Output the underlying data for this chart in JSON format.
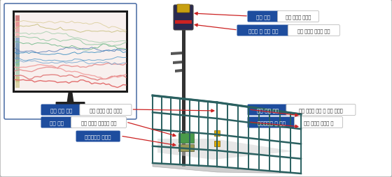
{
  "bg_color": "#eeeeee",
  "outer_border_color": "#aaaaaa",
  "label_bg_blue": "#1e4d9e",
  "label_gray_bg": "#f0f0f0",
  "label_gray_border": "#cccccc",
  "arrow_color": "#cc2222",
  "fence_color": "#2a6060",
  "pole_color": "#222222",
  "sensor_yellow": "#c8a010",
  "sensor_dark": "#333355",
  "monitor_frame": "#1a1a1a",
  "monitor_screen": "#f8f0ee",
  "monitor_border": "#5575aa",
  "labels_right_top": [
    [
      "풍속 센서",
      "지상 기지국 최상단"
    ],
    [
      "기울기 및 도난 센서",
      "지상 기지국 트러스 하단"
    ]
  ],
  "labels_left_bottom": [
    [
      "화재 감지 센서",
      "지상 기지국 펜스 모서리"
    ],
    [
      "전력 센서",
      "지상 기지국 분진함에 설치"
    ],
    [
      "와이어레스 분전함",
      ""
    ]
  ],
  "labels_right_bottom": [
    [
      "인체 감지 센서",
      "지상 기지국 입구 쪽 펜스 모서리"
    ],
    [
      "게이트웨이 및 함체",
      "지상 기지국 분전함 옆"
    ]
  ],
  "line_colors": [
    "#e06060",
    "#e07878",
    "#e89090",
    "#f0a0a0",
    "#80aad0",
    "#60a0cc",
    "#4090c0",
    "#6080b8",
    "#70b888",
    "#90c8a0",
    "#a8d0b0",
    "#c8c080",
    "#ddd0a0"
  ]
}
